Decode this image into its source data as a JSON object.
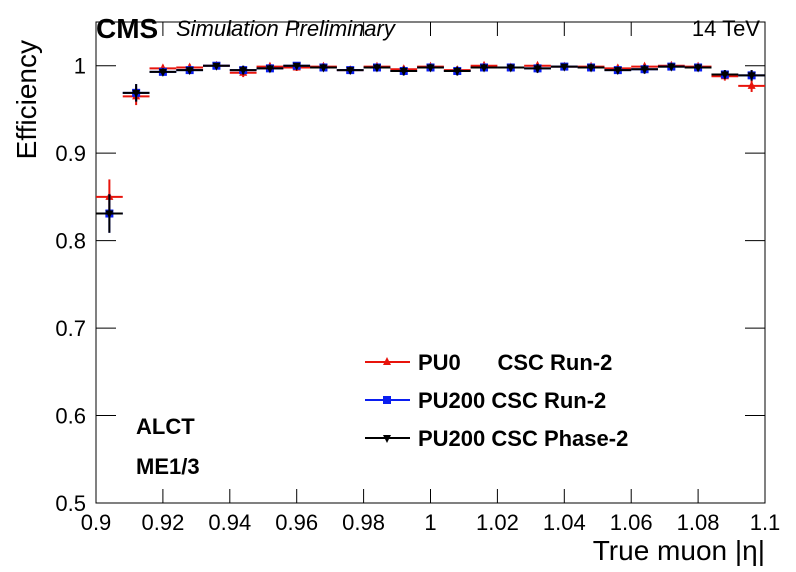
{
  "chart_data": {
    "type": "errorbar",
    "experiment": "CMS",
    "subtitle": "Simulation Preliminary",
    "energy": "14 TeV",
    "xlabel": "True muon |η|",
    "ylabel": "Efficiency",
    "annotations": [
      "ALCT",
      "ME1/3"
    ],
    "xlim": [
      0.9,
      1.1
    ],
    "ylim": [
      0.5,
      1.05
    ],
    "xticks": [
      0.9,
      0.92,
      0.94,
      0.96,
      0.98,
      1,
      1.02,
      1.04,
      1.06,
      1.08,
      1.1
    ],
    "yticks": [
      0.5,
      0.6,
      0.7,
      0.8,
      0.9,
      1
    ],
    "xerr": 0.004,
    "x": [
      0.904,
      0.912,
      0.92,
      0.928,
      0.936,
      0.944,
      0.952,
      0.96,
      0.968,
      0.976,
      0.984,
      0.992,
      1.0,
      1.008,
      1.016,
      1.024,
      1.032,
      1.04,
      1.048,
      1.056,
      1.064,
      1.072,
      1.08,
      1.088,
      1.096
    ],
    "series": [
      {
        "name": "PU0      CSC Run-2",
        "color": "#e8140c",
        "marker": "triangle-up",
        "values": [
          0.85,
          0.965,
          0.997,
          0.998,
          1.0,
          0.992,
          0.999,
          0.998,
          0.999,
          0.995,
          0.999,
          0.996,
          0.999,
          0.995,
          1.0,
          0.998,
          1.0,
          0.999,
          0.999,
          0.997,
          0.999,
          1.0,
          0.999,
          0.988,
          0.977
        ],
        "errors": [
          0.02,
          0.01,
          0.004,
          0.004,
          0.003,
          0.005,
          0.003,
          0.004,
          0.004,
          0.004,
          0.003,
          0.004,
          0.003,
          0.004,
          0.003,
          0.004,
          0.003,
          0.003,
          0.003,
          0.004,
          0.003,
          0.003,
          0.003,
          0.005,
          0.007
        ]
      },
      {
        "name": "PU200 CSC Run-2",
        "color": "#0a1ef0",
        "marker": "square",
        "values": [
          0.831,
          0.969,
          0.993,
          0.995,
          1.0,
          0.995,
          0.997,
          1.0,
          0.998,
          0.995,
          0.998,
          0.994,
          0.998,
          0.994,
          0.998,
          0.998,
          0.997,
          0.999,
          0.998,
          0.995,
          0.996,
          0.999,
          0.998,
          0.99,
          0.989
        ],
        "errors": [
          0.022,
          0.01,
          0.004,
          0.004,
          0.003,
          0.005,
          0.004,
          0.003,
          0.004,
          0.004,
          0.004,
          0.005,
          0.004,
          0.005,
          0.004,
          0.004,
          0.005,
          0.003,
          0.004,
          0.004,
          0.005,
          0.004,
          0.004,
          0.005,
          0.006
        ]
      },
      {
        "name": "PU200 CSC Phase-2",
        "color": "#000000",
        "marker": "triangle-down",
        "values": [
          0.831,
          0.969,
          0.993,
          0.995,
          1.0,
          0.995,
          0.997,
          1.0,
          0.998,
          0.995,
          0.998,
          0.994,
          0.998,
          0.994,
          0.998,
          0.998,
          0.997,
          0.999,
          0.998,
          0.995,
          0.996,
          0.999,
          0.998,
          0.99,
          0.989
        ],
        "errors": [
          0.022,
          0.01,
          0.004,
          0.004,
          0.003,
          0.005,
          0.004,
          0.003,
          0.004,
          0.004,
          0.004,
          0.005,
          0.004,
          0.005,
          0.004,
          0.004,
          0.005,
          0.003,
          0.004,
          0.004,
          0.005,
          0.004,
          0.004,
          0.005,
          0.006
        ]
      }
    ]
  }
}
